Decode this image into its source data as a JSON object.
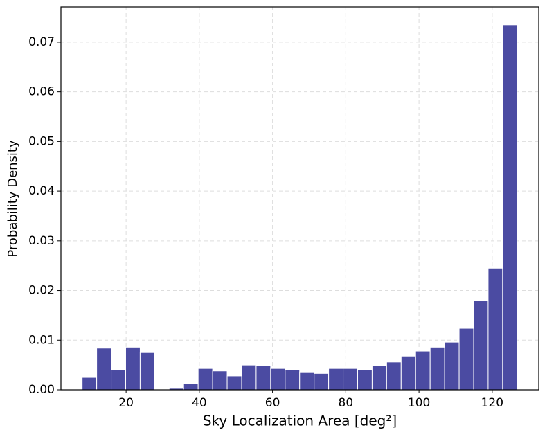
{
  "chart_data": {
    "type": "histogram",
    "xlabel": "Sky Localization Area [deg²]",
    "ylabel": "Probability Density",
    "bins": [
      8.0,
      11.96,
      15.92,
      19.88,
      23.84,
      27.8,
      31.76,
      35.72,
      39.68,
      43.64,
      47.6,
      51.56,
      55.52,
      59.48,
      63.44,
      67.4,
      71.36,
      75.32,
      79.28,
      83.24,
      87.2,
      91.16,
      95.12,
      99.08,
      103.04,
      107.0,
      110.96,
      114.92,
      118.88,
      122.84,
      126.8
    ],
    "values": [
      0.0025,
      0.0084,
      0.004,
      0.0086,
      0.0075,
      0,
      0.0003,
      0.0013,
      0.0043,
      0.0038,
      0.0028,
      0.005,
      0.0049,
      0.0043,
      0.004,
      0.0036,
      0.0033,
      0.0043,
      0.0043,
      0.004,
      0.0049,
      0.0056,
      0.0068,
      0.0078,
      0.0086,
      0.0096,
      0.0124,
      0.018,
      0.0245,
      0.0735
    ],
    "color": "#4b4ba2",
    "xlim": [
      2.2,
      132.7
    ],
    "ylim": [
      0,
      0.0771
    ],
    "xticks": [
      20,
      40,
      60,
      80,
      100,
      120
    ],
    "yticks": [
      {
        "value": 0,
        "label": "0.00"
      },
      {
        "value": 0.01,
        "label": "0.01"
      },
      {
        "value": 0.02,
        "label": "0.02"
      },
      {
        "value": 0.03,
        "label": "0.03"
      },
      {
        "value": 0.04,
        "label": "0.04"
      },
      {
        "value": 0.05,
        "label": "0.05"
      },
      {
        "value": 0.06,
        "label": "0.06"
      },
      {
        "value": 0.07,
        "label": "0.07"
      }
    ],
    "grid": true
  }
}
